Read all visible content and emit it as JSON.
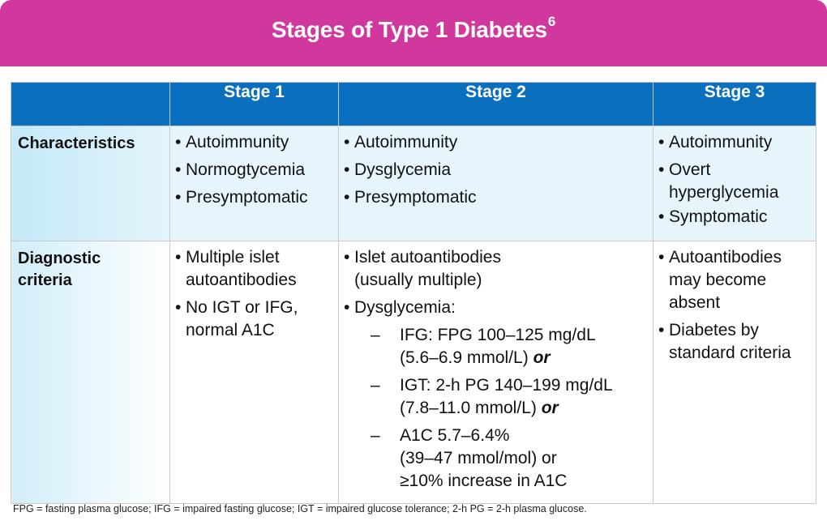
{
  "header": {
    "title": "Stages of Type 1 Diabetes",
    "superscript": "6"
  },
  "table": {
    "columns": [
      "",
      "Stage 1",
      "Stage 2",
      "Stage 3"
    ],
    "rows": {
      "characteristics": {
        "label": "Characteristics",
        "stage1": [
          "Autoimmunity",
          "Normogtycemia",
          "Presymptomatic"
        ],
        "stage2": [
          "Autoimmunity",
          "Dysglycemia",
          "Presymptomatic"
        ],
        "stage3": [
          "Autoimmunity",
          "Overt hyperglycemia",
          "Symptomatic"
        ]
      },
      "diagnostic": {
        "label_line1": "Diagnostic",
        "label_line2": "criteria",
        "stage1": [
          "Multiple islet autoantibodies",
          "No IGT or IFG, normal A1C"
        ],
        "stage2": {
          "item1_line1": "Islet autoantibodies",
          "item1_line2": "(usually multiple)",
          "item2": "Dysglycemia:",
          "sub1_line1": "IFG: FPG 100–125 mg/dL",
          "sub1_line2": "(5.6–6.9 mmol/L)",
          "sub1_or": "or",
          "sub2_line1": "IGT: 2-h PG 140–199 mg/dL",
          "sub2_line2": "(7.8–11.0 mmol/L)",
          "sub2_or": "or",
          "sub3_line1": "A1C 5.7–6.4%",
          "sub3_line2": "(39–47 mmol/mol) or",
          "sub3_line3": "≥10% increase in A1C"
        },
        "stage3": [
          "Autoantibodies may become absent",
          "Diabetes by standard criteria"
        ]
      }
    }
  },
  "footnote": "FPG = fasting plasma glucose; IFG = impaired fasting glucose; IGT = impaired glucose tolerance; 2-h PG = 2-h plasma glucose."
}
